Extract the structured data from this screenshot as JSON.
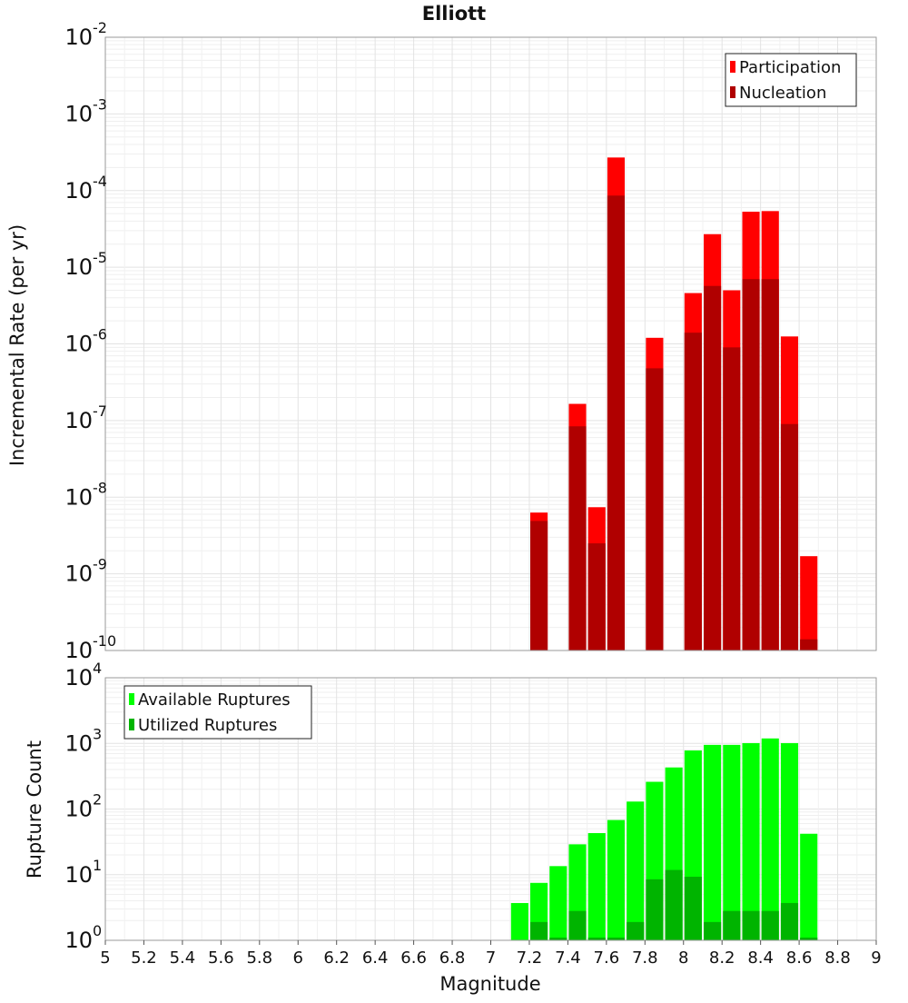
{
  "colors": {
    "participation": "#ff0000",
    "nucleation": "#b00000",
    "available": "#00ff00",
    "utilized": "#00b400",
    "grid": "#e3e3e3",
    "frame": "#9a9a9a"
  },
  "chart_data": [
    {
      "type": "bar",
      "title": "Elliott",
      "xlabel": "",
      "ylabel": "Incremental Rate (per yr)",
      "yscale": "log",
      "ylim_exponents": [
        -10,
        -2
      ],
      "xlim": [
        5,
        9
      ],
      "grid": true,
      "legend_placement": "top-right",
      "x": [
        7.25,
        7.45,
        7.55,
        7.65,
        7.85,
        8.05,
        8.15,
        8.25,
        8.35,
        8.45,
        8.55,
        8.65
      ],
      "series": [
        {
          "name": "Participation",
          "values": [
            6.3e-09,
            1.65e-07,
            7.4e-09,
            0.00027,
            1.2e-06,
            4.6e-06,
            2.7e-05,
            5e-06,
            5.3e-05,
            5.4e-05,
            1.25e-06,
            1.7e-09
          ]
        },
        {
          "name": "Nucleation",
          "values": [
            4.9e-09,
            8.4e-08,
            2.5e-09,
            8.6e-05,
            4.8e-07,
            1.4e-06,
            5.7e-06,
            9e-07,
            7e-06,
            7e-06,
            9e-08,
            1.4e-10
          ]
        }
      ]
    },
    {
      "type": "bar",
      "title": "",
      "xlabel": "Magnitude",
      "ylabel": "Rupture Count",
      "yscale": "log",
      "ylim_exponents": [
        0,
        4
      ],
      "xlim": [
        5,
        9
      ],
      "grid": true,
      "legend_placement": "top-left",
      "x": [
        7.15,
        7.25,
        7.35,
        7.45,
        7.55,
        7.65,
        7.75,
        7.85,
        7.95,
        8.05,
        8.15,
        8.25,
        8.35,
        8.45,
        8.55,
        8.65
      ],
      "x_ticks": [
        "5",
        "5.2",
        "5.4",
        "5.6",
        "5.8",
        "6",
        "6.2",
        "6.4",
        "6.6",
        "6.8",
        "7",
        "7.2",
        "7.4",
        "7.6",
        "7.8",
        "8",
        "8.2",
        "8.4",
        "8.6",
        "8.8",
        "9"
      ],
      "series": [
        {
          "name": "Available Ruptures",
          "values": [
            3.7,
            7.5,
            13.5,
            29,
            43,
            68,
            130,
            260,
            430,
            780,
            950,
            950,
            1010,
            1190,
            1010,
            42
          ]
        },
        {
          "name": "Utilized Ruptures",
          "values": [
            null,
            1.9,
            1.1,
            2.8,
            1.1,
            1.1,
            1.9,
            8.5,
            11.8,
            9.3,
            1.9,
            2.8,
            2.8,
            2.8,
            3.7,
            1.1
          ]
        }
      ]
    }
  ]
}
